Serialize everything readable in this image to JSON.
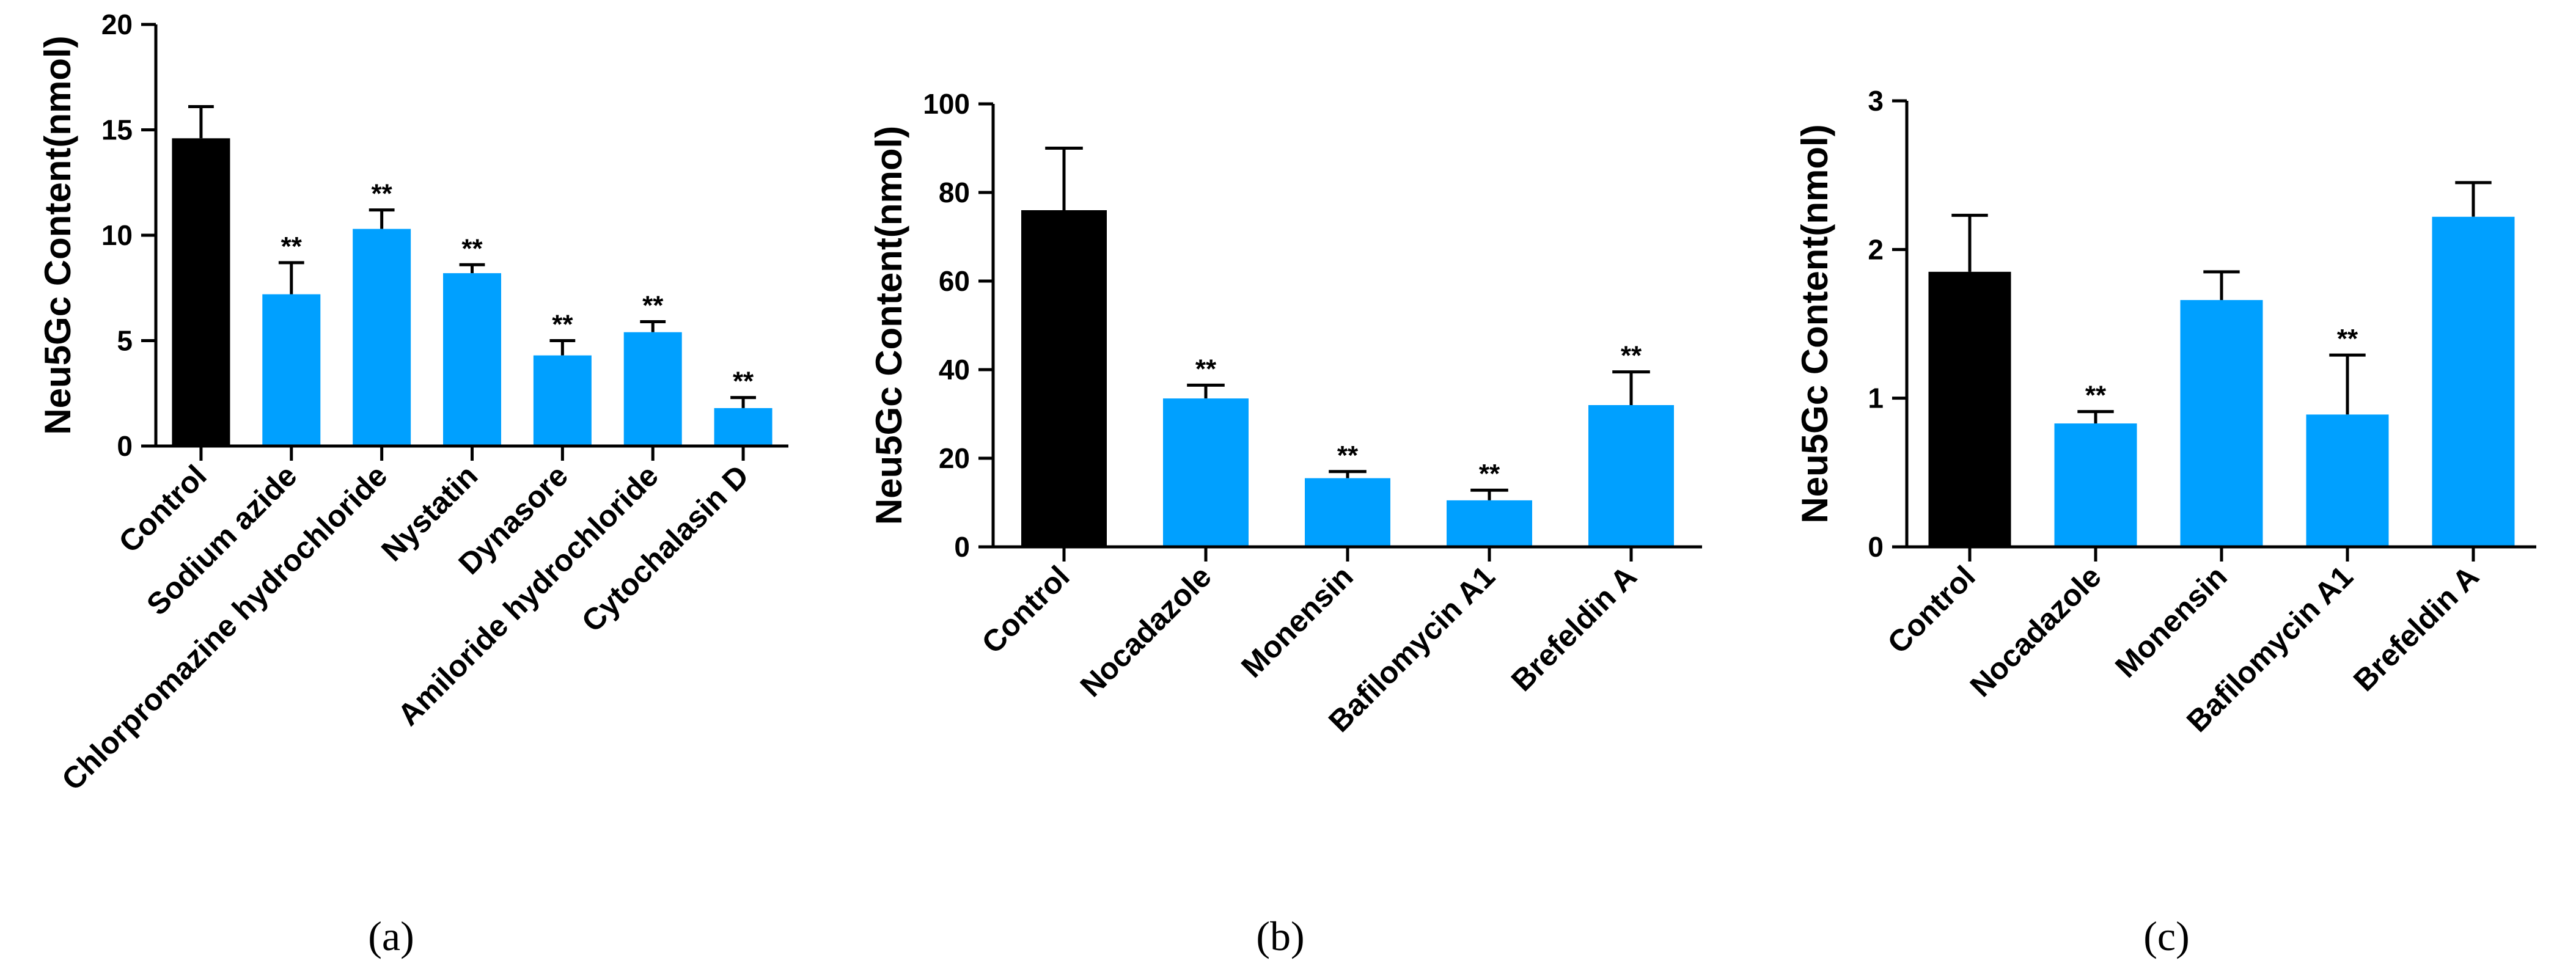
{
  "chart_data": [
    {
      "type": "bar",
      "panel_label": "(a)",
      "ylabel": "Neu5Gc Content(nmol)",
      "ylim": [
        0,
        20
      ],
      "yticks": [
        0,
        5,
        10,
        15,
        20
      ],
      "categories": [
        "Control",
        "Sodium azide",
        "Chlorpromazine hydrochloride",
        "Nystatin",
        "Dynasore",
        "Amiloride hydrochloride",
        "Cytochalasin D"
      ],
      "values": [
        14.6,
        7.2,
        10.3,
        8.2,
        4.3,
        5.4,
        1.8
      ],
      "errors": [
        1.5,
        1.5,
        0.9,
        0.4,
        0.7,
        0.5,
        0.5
      ],
      "colors": [
        "#000000",
        "#00a0ff",
        "#00a0ff",
        "#00a0ff",
        "#00a0ff",
        "#00a0ff",
        "#00a0ff"
      ],
      "significance": [
        "",
        "**",
        "**",
        "**",
        "**",
        "**",
        "**"
      ]
    },
    {
      "type": "bar",
      "panel_label": "(b)",
      "ylabel": "Neu5Gc Content(nmol)",
      "ylim": [
        0,
        100
      ],
      "yticks": [
        0,
        20,
        40,
        60,
        80,
        100
      ],
      "categories": [
        "Control",
        "Nocadazole",
        "Monensin",
        "Bafilomycin A1",
        "Brefeldin A"
      ],
      "values": [
        76,
        33.5,
        15.5,
        10.5,
        32
      ],
      "errors": [
        14,
        3,
        1.5,
        2.3,
        7.5
      ],
      "colors": [
        "#000000",
        "#00a0ff",
        "#00a0ff",
        "#00a0ff",
        "#00a0ff"
      ],
      "significance": [
        "",
        "**",
        "**",
        "**",
        "**"
      ]
    },
    {
      "type": "bar",
      "panel_label": "(c)",
      "ylabel": "Neu5Gc Content(nmol)",
      "ylim": [
        0,
        3
      ],
      "yticks": [
        0,
        1,
        2,
        3
      ],
      "categories": [
        "Control",
        "Nocadazole",
        "Monensin",
        "Bafilomycin A1",
        "Brefeldin A"
      ],
      "values": [
        1.85,
        0.83,
        1.66,
        0.89,
        2.22
      ],
      "errors": [
        0.38,
        0.08,
        0.19,
        0.4,
        0.23
      ],
      "colors": [
        "#000000",
        "#00a0ff",
        "#00a0ff",
        "#00a0ff",
        "#00a0ff"
      ],
      "significance": [
        "",
        "**",
        "",
        "**",
        ""
      ]
    }
  ]
}
